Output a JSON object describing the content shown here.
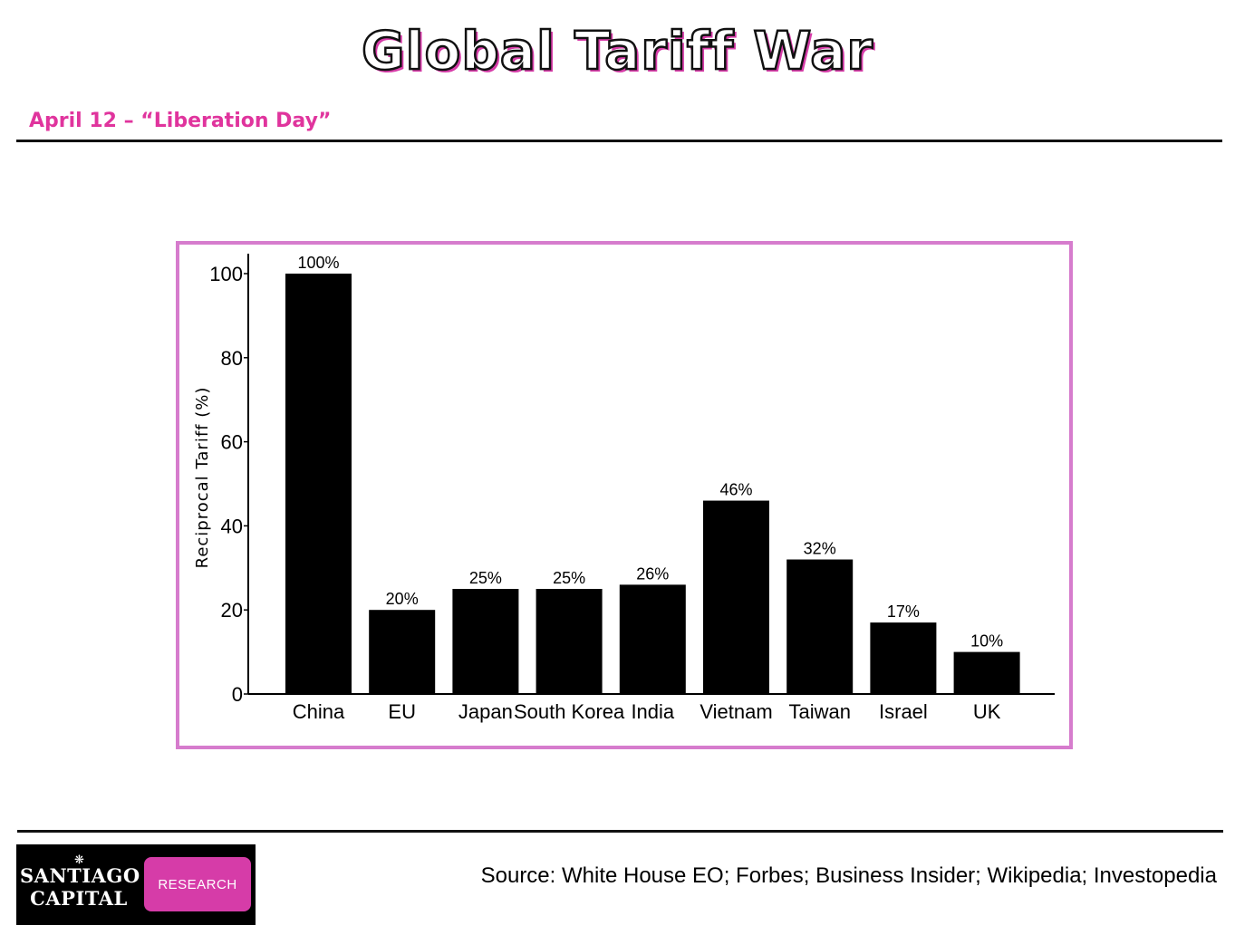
{
  "header": {
    "title": "Global Tariff War",
    "subtitle": "April 12 – “Liberation Day”"
  },
  "colors": {
    "accent": "#e0349d",
    "frame": "#d67ccd",
    "bar": "#000000"
  },
  "chart_data": {
    "type": "bar",
    "title": "",
    "xlabel": "",
    "ylabel": "Reciprocal Tariff (%)",
    "categories": [
      "China",
      "EU",
      "Japan",
      "South Korea",
      "India",
      "Vietnam",
      "Taiwan",
      "Israel",
      "UK"
    ],
    "values": [
      100,
      20,
      25,
      25,
      26,
      46,
      32,
      17,
      10
    ],
    "value_labels": [
      "100%",
      "20%",
      "25%",
      "25%",
      "26%",
      "46%",
      "32%",
      "17%",
      "10%"
    ],
    "yticks": [
      0,
      20,
      40,
      60,
      80,
      100
    ],
    "ylim": [
      0,
      105
    ],
    "grid": false,
    "legend": "none"
  },
  "footer": {
    "logo_line1": "SANTIAGO",
    "logo_line2": "CAPITAL",
    "logo_shell": "logo-shell-icon",
    "logo_badge": "RESEARCH",
    "source": "Source: White House EO; Forbes; Business Insider; Wikipedia; Investopedia"
  }
}
